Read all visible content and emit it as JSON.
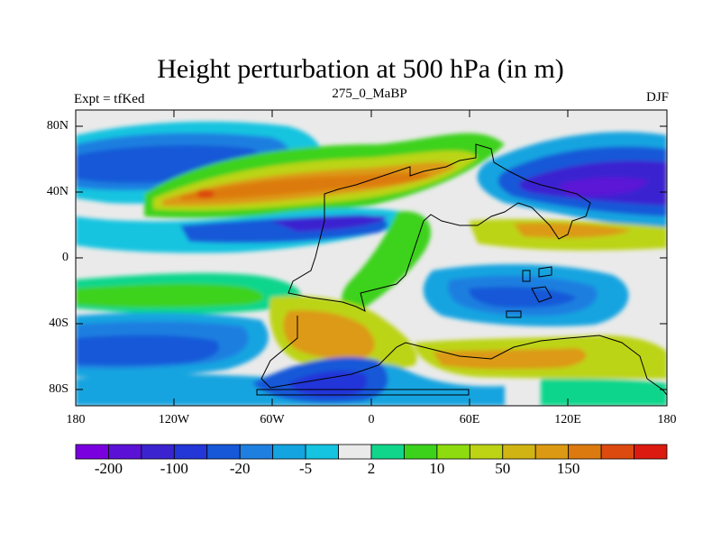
{
  "title": "Height perturbation at 500 hPa (in m)",
  "subtitle_left": "Expt = tfKed",
  "subtitle_center": "275_0_MaBP",
  "subtitle_right": "DJF",
  "y_ticks": [
    "80N",
    "40N",
    "0",
    "40S",
    "80S"
  ],
  "x_ticks": [
    "180",
    "120W",
    "60W",
    "0",
    "60E",
    "120E",
    "180"
  ],
  "colorbar": {
    "colors": [
      "#7a00e0",
      "#5b12d6",
      "#3b24d0",
      "#2336d8",
      "#1658d8",
      "#1f7fe0",
      "#14a4e0",
      "#14c4e0",
      "#eaeaea",
      "#10d68c",
      "#3cd21c",
      "#8edc10",
      "#bcd414",
      "#d0b414",
      "#dc9a14",
      "#dc7a10",
      "#dc4a10",
      "#dc1a10"
    ],
    "labels": [
      "-200",
      "-100",
      "-20",
      "-5",
      "2",
      "10",
      "50",
      "150"
    ]
  },
  "palette": {
    "background_neutral": "#eaeaea",
    "coast": "#000000"
  }
}
